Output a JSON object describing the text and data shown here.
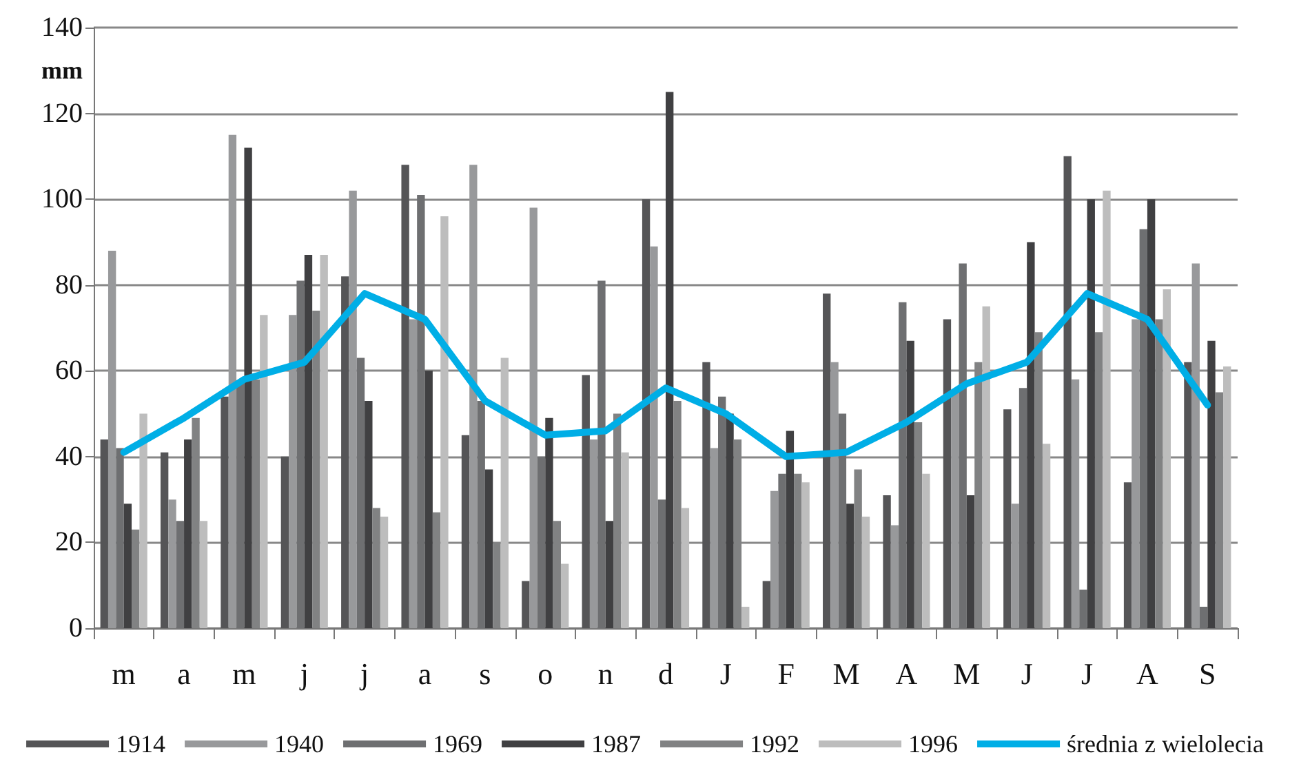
{
  "chart_data": {
    "type": "bar",
    "ylabel": "mm",
    "categories": [
      "m",
      "a",
      "m",
      "j",
      "j",
      "a",
      "s",
      "o",
      "n",
      "d",
      "J",
      "F",
      "M",
      "A",
      "M",
      "J",
      "J",
      "A",
      "S"
    ],
    "series": [
      {
        "name": "1914",
        "color": "#555557",
        "values": [
          44,
          41,
          54,
          40,
          82,
          108,
          45,
          11,
          59,
          100,
          62,
          11,
          78,
          31,
          72,
          51,
          110,
          34,
          62
        ]
      },
      {
        "name": "1940",
        "color": "#98999b",
        "values": [
          88,
          30,
          115,
          73,
          102,
          72,
          108,
          98,
          44,
          89,
          42,
          32,
          62,
          24,
          55,
          29,
          58,
          72,
          85
        ]
      },
      {
        "name": "1969",
        "color": "#6e6f71",
        "values": [
          42,
          25,
          57,
          81,
          63,
          101,
          53,
          40,
          81,
          30,
          54,
          36,
          50,
          76,
          85,
          56,
          9,
          93,
          5
        ]
      },
      {
        "name": "1987",
        "color": "#404042",
        "values": [
          29,
          44,
          112,
          87,
          53,
          60,
          37,
          49,
          25,
          125,
          50,
          46,
          29,
          67,
          31,
          90,
          100,
          100,
          67
        ]
      },
      {
        "name": "1992",
        "color": "#818283",
        "values": [
          23,
          49,
          58,
          74,
          28,
          27,
          20,
          25,
          50,
          53,
          44,
          36,
          37,
          48,
          62,
          69,
          69,
          72,
          55
        ]
      },
      {
        "name": "1996",
        "color": "#bdbdbd",
        "values": [
          50,
          25,
          73,
          87,
          26,
          96,
          63,
          15,
          41,
          28,
          5,
          34,
          26,
          36,
          75,
          43,
          102,
          79,
          61
        ]
      },
      {
        "name": "średnia z wielolecia",
        "type": "line",
        "color": "#00aee6",
        "values": [
          41,
          49,
          58,
          62,
          78,
          72,
          53,
          45,
          46,
          56,
          50,
          40,
          41,
          48,
          57,
          62,
          78,
          72,
          52
        ]
      }
    ],
    "ylim": [
      0,
      140
    ],
    "yticks": [
      0,
      20,
      40,
      60,
      80,
      100,
      120,
      140
    ],
    "grid": "y",
    "legend": "bottom",
    "marker": "none"
  }
}
